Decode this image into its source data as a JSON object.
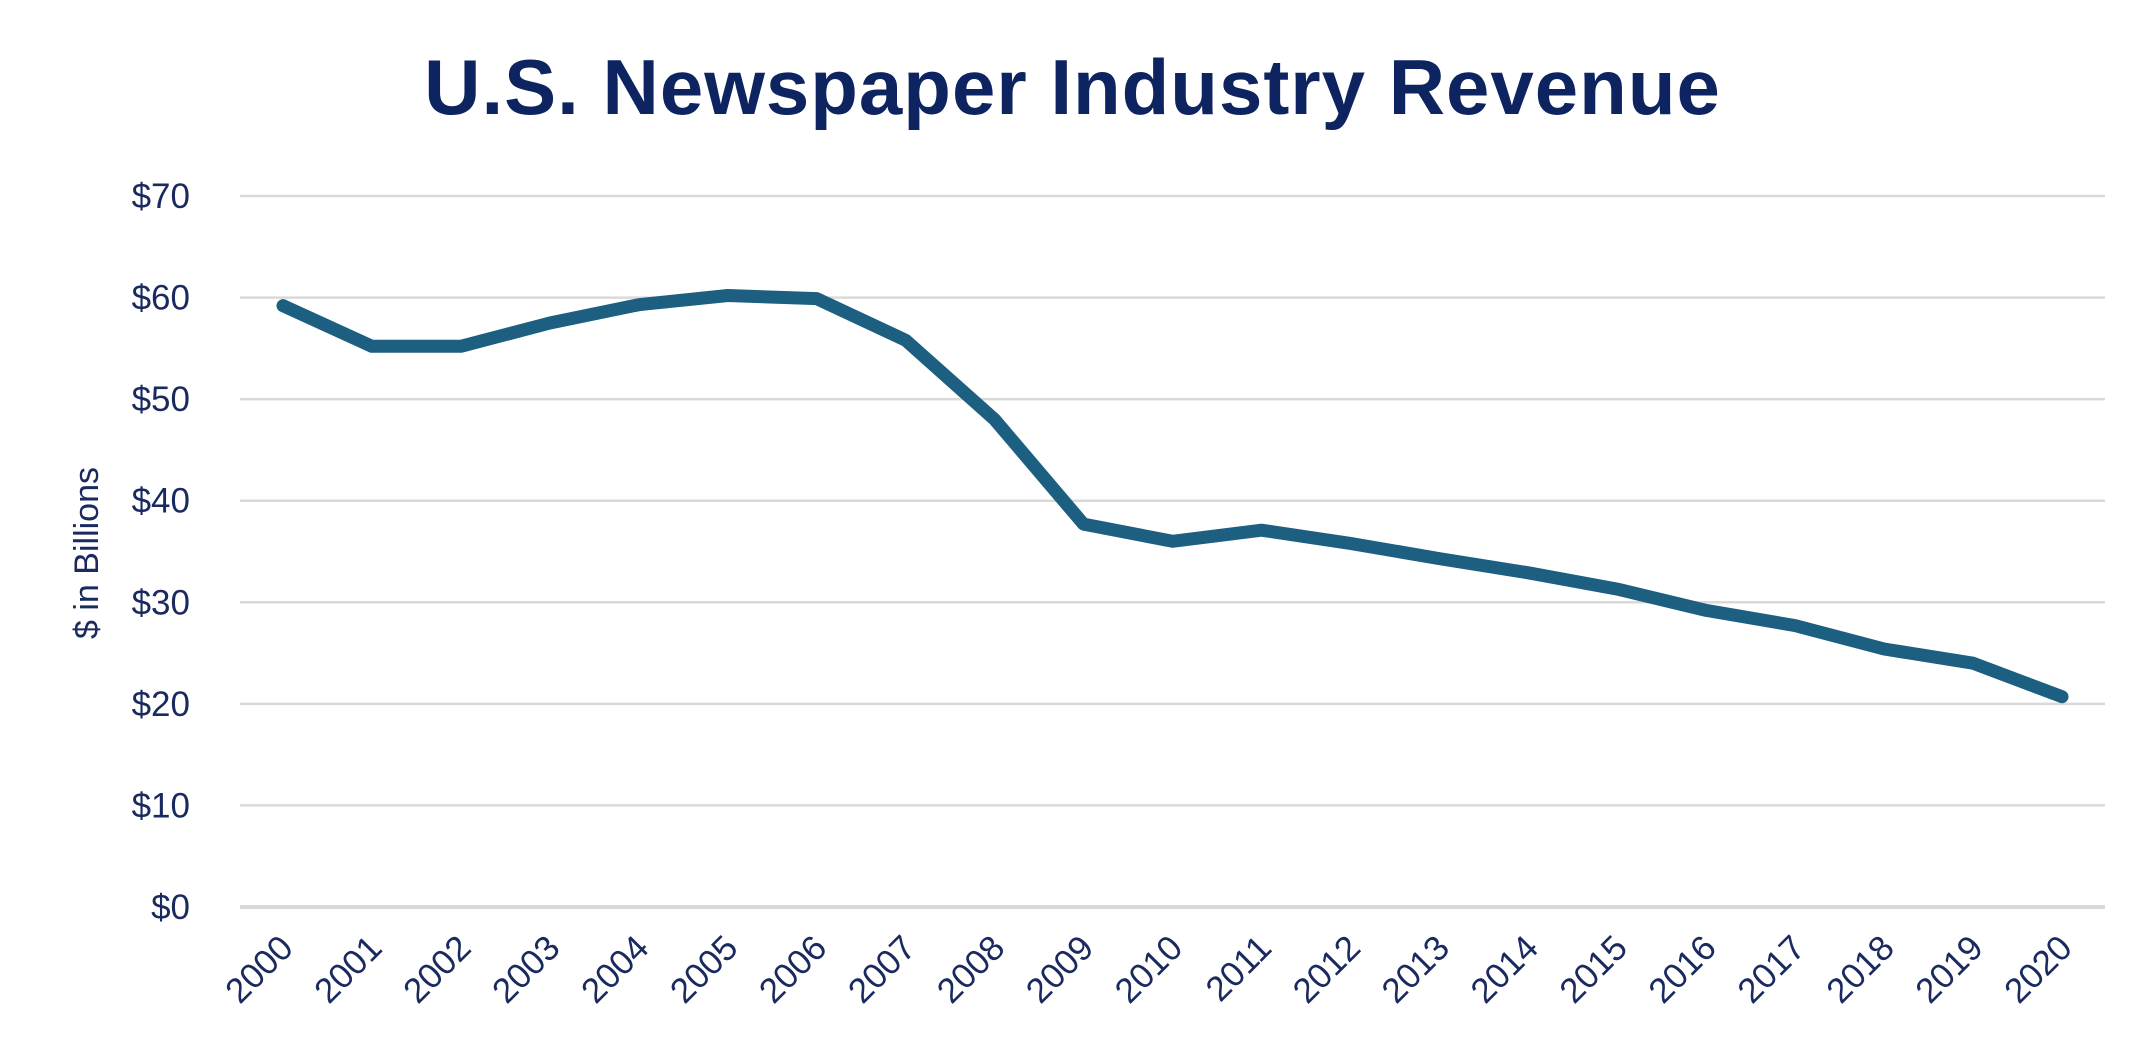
{
  "chart_data": {
    "type": "line",
    "title": "U.S. Newspaper Industry Revenue",
    "xlabel": "",
    "ylabel": "$ in Billions",
    "ylim": [
      0,
      70
    ],
    "ytick_labels": [
      "$0",
      "$10",
      "$20",
      "$30",
      "$40",
      "$50",
      "$60",
      "$70"
    ],
    "categories": [
      "2000",
      "2001",
      "2002",
      "2003",
      "2004",
      "2005",
      "2006",
      "2007",
      "2008",
      "2009",
      "2010",
      "2011",
      "2012",
      "2013",
      "2014",
      "2015",
      "2016",
      "2017",
      "2018",
      "2019",
      "2020"
    ],
    "series": [
      {
        "values": [
          59.2,
          55.2,
          55.2,
          57.5,
          59.3,
          60.2,
          59.9,
          55.8,
          48.0,
          37.7,
          36.0,
          37.1,
          35.8,
          34.3,
          32.9,
          31.3,
          29.2,
          27.7,
          25.4,
          24.0,
          20.7
        ]
      }
    ],
    "grid": true,
    "legend": "none",
    "colors": {
      "line": "#1c5f80",
      "title": "#0e2460",
      "text": "#1a2a5e",
      "grid": "#d9d9d9"
    }
  }
}
